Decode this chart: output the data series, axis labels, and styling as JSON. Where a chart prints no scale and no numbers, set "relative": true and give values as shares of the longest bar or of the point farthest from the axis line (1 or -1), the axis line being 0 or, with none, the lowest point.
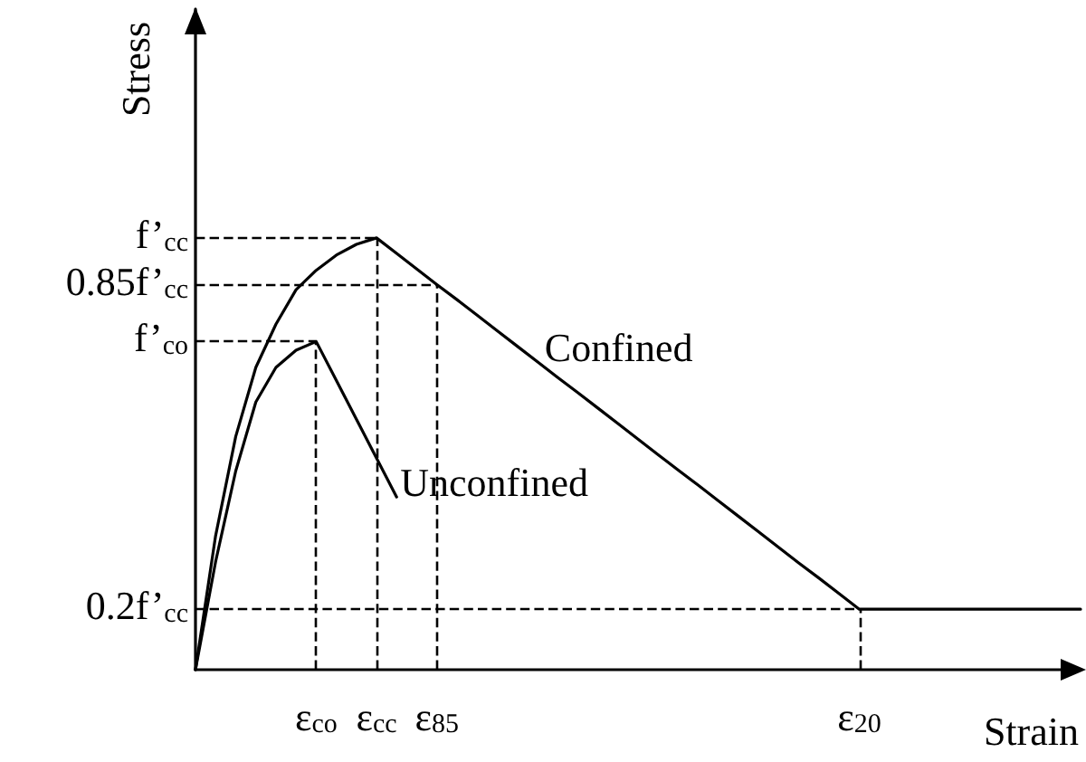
{
  "chart_data": {
    "type": "line",
    "relative": true,
    "tick_labels": "x",
    "xlabel": "Strain",
    "ylabel": "Stress",
    "marker": "none",
    "line_style": "solid",
    "grid": false,
    "legend": false,
    "categories": [
      null,
      null,
      null,
      null,
      null,
      null,
      "ε$_{co}$",
      null,
      null,
      "ε$_{cc}$",
      null,
      null,
      "ε$_{85}$",
      null,
      null,
      null,
      null,
      null,
      null,
      null,
      null,
      null,
      null,
      null,
      null,
      null,
      null,
      null,
      null,
      null,
      null,
      null,
      null,
      "ε$_{20}$",
      null,
      null,
      null,
      null,
      null,
      null,
      null,
      null,
      null,
      null,
      null
    ],
    "series": [
      {
        "name": "Confined",
        "color": "#000000",
        "values": [
          0,
          0.31,
          0.54,
          0.7,
          0.8,
          0.88,
          0.925,
          0.96,
          0.985,
          1,
          0.964,
          0.928,
          0.892,
          0.857,
          0.821,
          0.785,
          0.749,
          0.713,
          0.677,
          0.642,
          0.606,
          0.57,
          0.534,
          0.498,
          0.462,
          0.427,
          0.391,
          0.355,
          0.319,
          0.283,
          0.247,
          0.212,
          0.176,
          0.14,
          0.14,
          0.14,
          0.14,
          0.14,
          0.14,
          0.14,
          0.14,
          0.14,
          0.14,
          0.14,
          0.14
        ]
      },
      {
        "name": "Unconfined",
        "color": "#000000",
        "values": [
          0,
          0.25,
          0.46,
          0.62,
          0.7,
          0.74,
          0.76,
          0.67,
          0.58,
          0.49,
          0.4,
          null,
          null,
          null,
          null,
          null,
          null,
          null,
          null,
          null,
          null,
          null,
          null,
          null,
          null,
          null,
          null,
          null,
          null,
          null,
          null,
          null,
          null,
          null,
          null,
          null,
          null,
          null,
          null,
          null,
          null,
          null,
          null,
          null,
          null
        ]
      }
    ],
    "ref_lines": [
      {
        "axis": "x",
        "value": "ε$_{co}$",
        "color": "#000000",
        "line_style": "dashed"
      },
      {
        "axis": "x",
        "value": "ε$_{cc}$",
        "color": "#000000",
        "line_style": "dashed"
      },
      {
        "axis": "x",
        "value": "ε$_{85}$",
        "color": "#000000",
        "line_style": "dashed"
      },
      {
        "axis": "x",
        "value": "ε$_{20}$",
        "color": "#000000",
        "line_style": "dashed"
      },
      {
        "axis": "y",
        "value": 1,
        "label": "f’$_{cc}$",
        "color": "#000000",
        "line_style": "dashed"
      },
      {
        "axis": "y",
        "value": 0.89,
        "label": "0.85f’$_{cc}$",
        "color": "#000000",
        "line_style": "dashed"
      },
      {
        "axis": "y",
        "value": 0.76,
        "label": "f’$_{co}$",
        "color": "#000000",
        "line_style": "dashed"
      },
      {
        "axis": "y",
        "value": 0.14,
        "label": "0.2f’$_{cc}$",
        "color": "#000000",
        "line_style": "dashed"
      }
    ]
  }
}
